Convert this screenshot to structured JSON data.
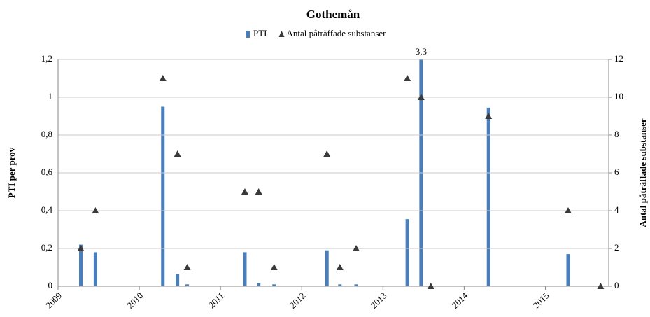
{
  "chart_data": {
    "type": "bar-scatter",
    "title": "Gothemån",
    "ylabel": "PTI per prov",
    "y2label": "Antal påträffade substanser",
    "x": [
      2009.28,
      2009.46,
      2010.29,
      2010.47,
      2010.59,
      2011.3,
      2011.47,
      2011.66,
      2012.31,
      2012.47,
      2012.67,
      2013.3,
      2013.47,
      2013.59,
      2014.3,
      2015.28,
      2015.68
    ],
    "xlim": [
      2009,
      2015.78
    ],
    "xticks": [
      2009,
      2010,
      2011,
      2012,
      2013,
      2014,
      2015
    ],
    "ylim": [
      0,
      1.2
    ],
    "yticks": [
      0,
      {
        "value": 0.2,
        "label": "0,2"
      },
      {
        "value": 0.4,
        "label": "0,4"
      },
      {
        "value": 0.6,
        "label": "0,6"
      },
      {
        "value": 0.8,
        "label": "0,8"
      },
      1,
      {
        "value": 1.2,
        "label": "1,2"
      }
    ],
    "y2lim": [
      0,
      12
    ],
    "y2ticks": [
      0,
      2,
      4,
      6,
      8,
      10,
      12
    ],
    "series": [
      {
        "name": "PTI",
        "color": "#4a7ebb",
        "type": "bar",
        "values": [
          0.22,
          0.18,
          0.95,
          0.065,
          0.01,
          0.18,
          0.015,
          0.01,
          0.19,
          0.01,
          0.01,
          0.355,
          3.3,
          null,
          0.945,
          0.17,
          null
        ],
        "value_labels": [
          null,
          null,
          null,
          null,
          null,
          null,
          null,
          null,
          null,
          null,
          null,
          null,
          "3,3",
          null,
          null,
          null,
          null
        ]
      },
      {
        "name": "Antal påträffade substanser",
        "color": "#3a3a3a",
        "type": "scatter",
        "axis": "y2",
        "values": [
          2,
          4,
          11,
          7,
          1,
          5,
          5,
          1,
          7,
          1,
          2,
          11,
          10,
          0,
          9,
          4,
          0
        ]
      }
    ]
  }
}
